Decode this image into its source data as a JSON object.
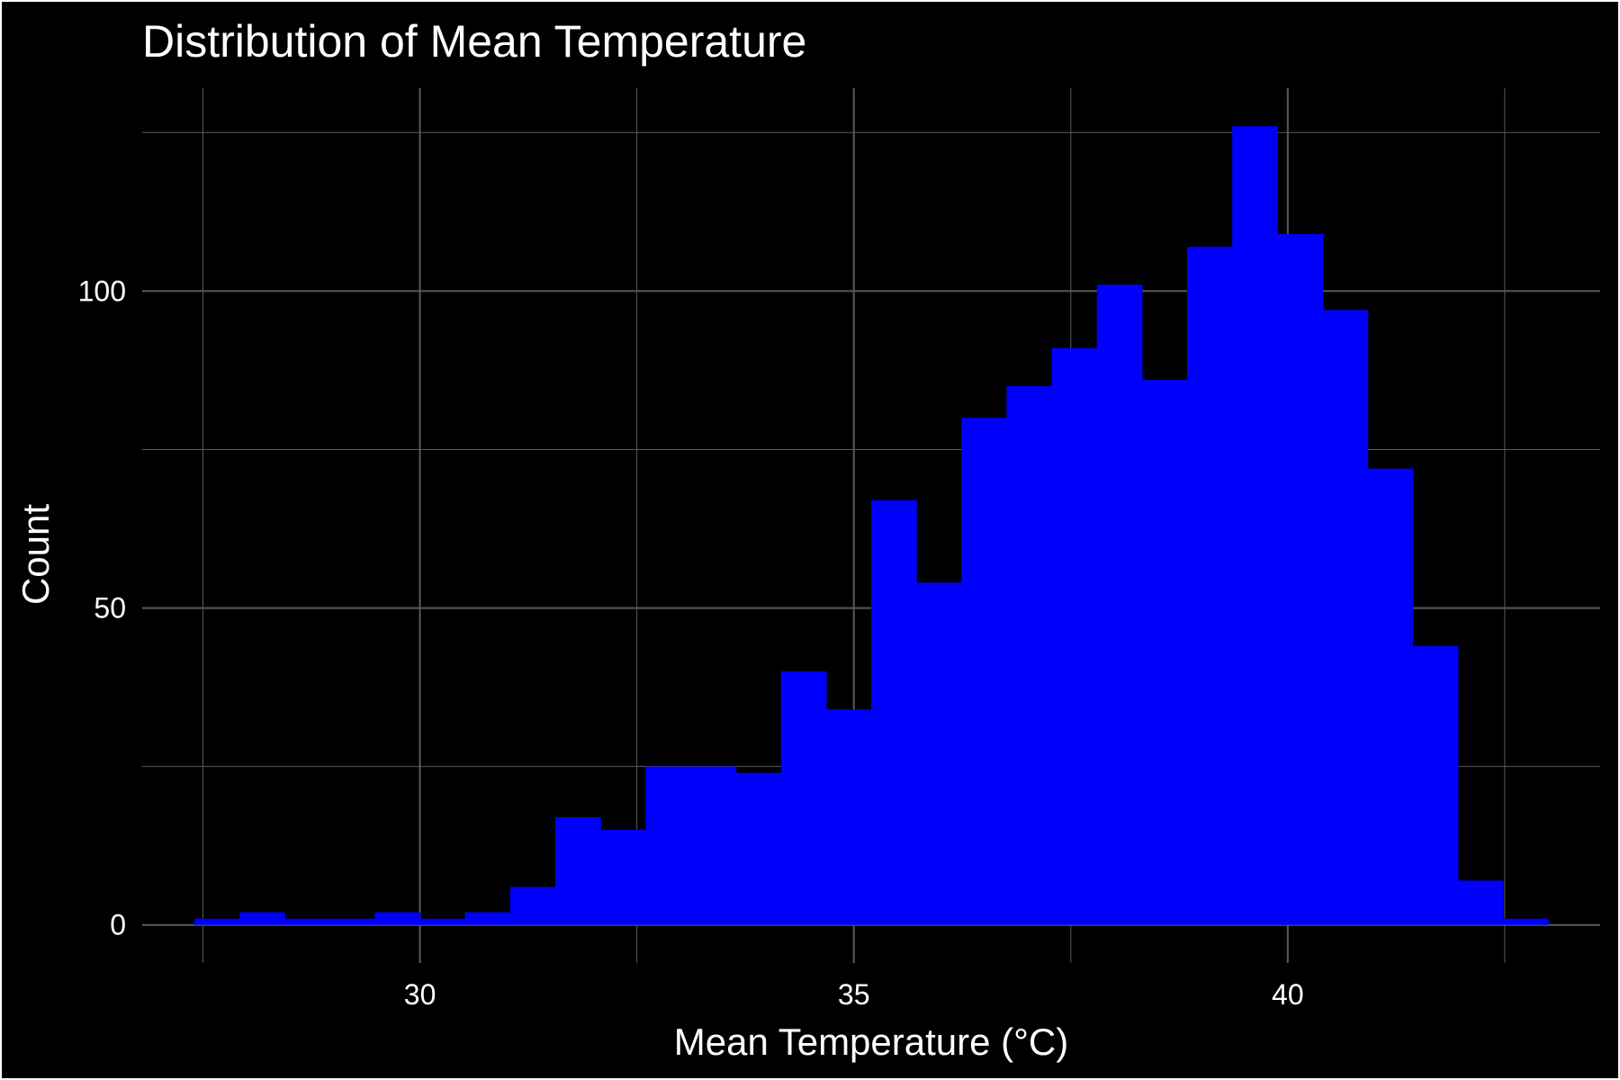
{
  "chart_data": {
    "type": "bar",
    "title": "Distribution of Mean Temperature",
    "xlabel": "Mean Temperature (°C)",
    "ylabel": "Count",
    "bins": [
      {
        "x0": 27.4,
        "x1": 27.92,
        "count": 1
      },
      {
        "x0": 27.92,
        "x1": 28.44,
        "count": 2
      },
      {
        "x0": 28.44,
        "x1": 28.96,
        "count": 1
      },
      {
        "x0": 28.96,
        "x1": 29.48,
        "count": 1
      },
      {
        "x0": 29.48,
        "x1": 30.0,
        "count": 2
      },
      {
        "x0": 30.0,
        "x1": 30.52,
        "count": 1
      },
      {
        "x0": 30.52,
        "x1": 31.04,
        "count": 2
      },
      {
        "x0": 31.04,
        "x1": 31.56,
        "count": 6
      },
      {
        "x0": 31.56,
        "x1": 32.08,
        "count": 17
      },
      {
        "x0": 32.08,
        "x1": 32.6,
        "count": 15
      },
      {
        "x0": 32.6,
        "x1": 33.12,
        "count": 25
      },
      {
        "x0": 33.12,
        "x1": 33.64,
        "count": 25
      },
      {
        "x0": 33.64,
        "x1": 34.16,
        "count": 24
      },
      {
        "x0": 34.16,
        "x1": 34.68,
        "count": 40
      },
      {
        "x0": 34.68,
        "x1": 35.2,
        "count": 34
      },
      {
        "x0": 35.2,
        "x1": 35.72,
        "count": 67
      },
      {
        "x0": 35.72,
        "x1": 36.24,
        "count": 54
      },
      {
        "x0": 36.24,
        "x1": 36.76,
        "count": 80
      },
      {
        "x0": 36.76,
        "x1": 37.28,
        "count": 85
      },
      {
        "x0": 37.28,
        "x1": 37.8,
        "count": 91
      },
      {
        "x0": 37.8,
        "x1": 38.32,
        "count": 101
      },
      {
        "x0": 38.32,
        "x1": 38.84,
        "count": 86
      },
      {
        "x0": 38.84,
        "x1": 39.36,
        "count": 107
      },
      {
        "x0": 39.36,
        "x1": 39.88,
        "count": 126
      },
      {
        "x0": 39.88,
        "x1": 40.4,
        "count": 109
      },
      {
        "x0": 40.4,
        "x1": 40.92,
        "count": 97
      },
      {
        "x0": 40.92,
        "x1": 41.44,
        "count": 72
      },
      {
        "x0": 41.44,
        "x1": 41.96,
        "count": 44
      },
      {
        "x0": 41.96,
        "x1": 42.48,
        "count": 7
      },
      {
        "x0": 42.48,
        "x1": 43.0,
        "count": 1
      }
    ],
    "xlim": [
      26.8,
      43.6
    ],
    "ylim": [
      -6,
      132
    ],
    "xticks": [
      30,
      35,
      40
    ],
    "xtick_labels": [
      "30",
      "35",
      "40"
    ],
    "yticks": [
      0,
      50,
      100
    ],
    "ytick_labels": [
      "0",
      "50",
      "100"
    ],
    "x_minor_gridlines": [
      27.5,
      32.5,
      37.5,
      42.5
    ],
    "y_minor_gridlines": [
      25,
      75,
      125
    ],
    "grid": true,
    "legend": "none",
    "colors": {
      "bar": "#0000ff",
      "background": "#000000",
      "grid": "#5a5a5a",
      "text": "#ffffff"
    }
  }
}
